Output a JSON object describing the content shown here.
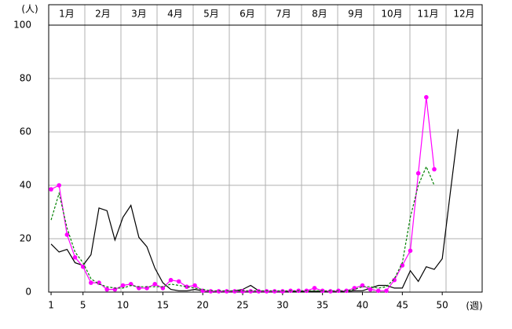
{
  "chart_data": {
    "type": "line",
    "y_label": "(人)",
    "x_label": "(週)",
    "months": [
      "1月",
      "2月",
      "3月",
      "4月",
      "5月",
      "6月",
      "7月",
      "8月",
      "9月",
      "10月",
      "11月",
      "12月"
    ],
    "x": [
      1,
      2,
      3,
      4,
      5,
      6,
      7,
      8,
      9,
      10,
      11,
      12,
      13,
      14,
      15,
      16,
      17,
      18,
      19,
      20,
      21,
      22,
      23,
      24,
      25,
      26,
      27,
      28,
      29,
      30,
      31,
      32,
      33,
      34,
      35,
      36,
      37,
      38,
      39,
      40,
      41,
      42,
      43,
      44,
      45,
      46,
      47,
      48,
      49,
      50,
      51,
      52
    ],
    "series": [
      {
        "color": "#000000",
        "style": "solid",
        "markers": false,
        "values": [
          18,
          15,
          16,
          11,
          10,
          14,
          31.5,
          30.5,
          19.5,
          28,
          32.5,
          20.5,
          17,
          9,
          3.5,
          1,
          0.5,
          0.5,
          1,
          0.5,
          0.3,
          0.3,
          0.3,
          0.5,
          1,
          2.5,
          0.5,
          0.3,
          0.3,
          0.3,
          0.3,
          0.3,
          0.3,
          0.3,
          0.3,
          0.3,
          0.3,
          0.3,
          0.5,
          0.5,
          1.5,
          2.5,
          2.5,
          1.5,
          1.5,
          8,
          4,
          9.5,
          8.5,
          12.5,
          37,
          61
        ]
      },
      {
        "color": "#ff00ff",
        "style": "solid",
        "markers": true,
        "values": [
          38.5,
          40,
          21.5,
          13,
          9.5,
          3.5,
          3.5,
          1,
          1,
          2.5,
          3,
          1.5,
          1.5,
          3,
          1.5,
          4.5,
          4,
          2,
          2.5,
          0.5,
          0.3,
          0.3,
          0.3,
          0.3,
          0.3,
          0.3,
          0.3,
          0.3,
          0.3,
          0.3,
          0.5,
          0.5,
          0.5,
          1.5,
          0.5,
          0.3,
          0.5,
          0.5,
          1.5,
          2.5,
          1,
          0.5,
          0.5,
          4.5,
          10,
          15.5,
          44.5,
          73,
          46,
          null,
          null,
          null
        ]
      },
      {
        "color": "#008000",
        "style": "dashed",
        "markers": false,
        "values": [
          27,
          37,
          24,
          15,
          11,
          5,
          3,
          2,
          1.5,
          1.5,
          2.5,
          2,
          2,
          2,
          2,
          3,
          2.5,
          2,
          1.5,
          1,
          0.5,
          0.5,
          0.5,
          0.5,
          0.5,
          0.5,
          0.5,
          0.5,
          0.5,
          0.5,
          0.5,
          0.5,
          0.5,
          0.5,
          0.5,
          0.5,
          0.5,
          0.5,
          1,
          2,
          2,
          1.5,
          2,
          5,
          11,
          28,
          40,
          47,
          40,
          null,
          null,
          null
        ]
      }
    ],
    "xlim": [
      0.7,
      55
    ],
    "ylim": [
      0,
      100
    ],
    "xticks": [
      1,
      5,
      10,
      15,
      20,
      25,
      30,
      35,
      40,
      45,
      50
    ],
    "yticks": [
      0,
      20,
      40,
      60,
      80,
      100
    ],
    "grid": true
  }
}
